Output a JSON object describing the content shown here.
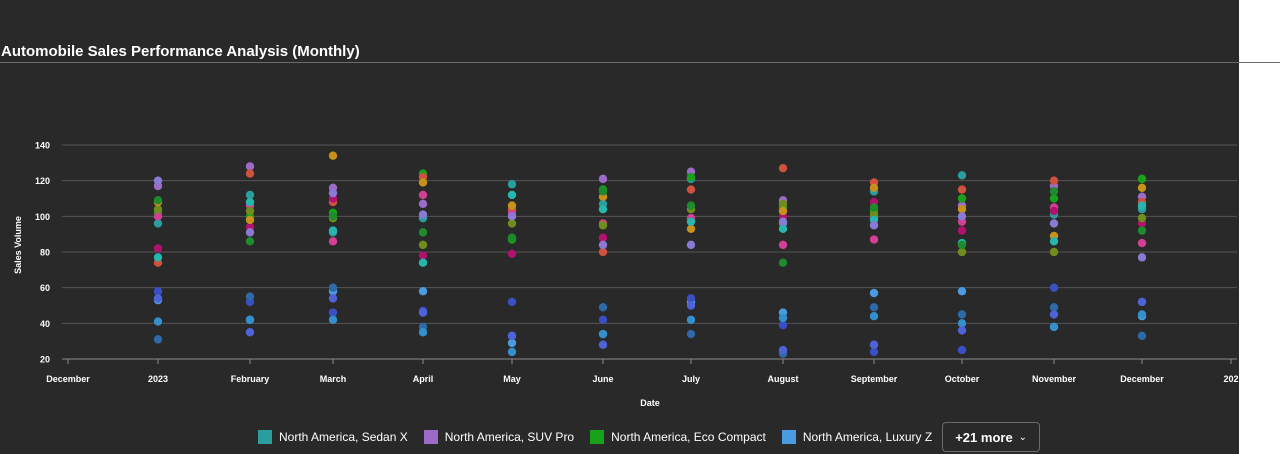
{
  "title": "Automobile Sales Performance Analysis (Monthly)",
  "chart_data": {
    "type": "scatter",
    "xlabel": "Date",
    "ylabel": "Sales Volume",
    "ylim": [
      20,
      140
    ],
    "yticks": [
      20,
      40,
      60,
      80,
      100,
      120,
      140
    ],
    "xticks": [
      "December",
      "2023",
      "February",
      "March",
      "April",
      "May",
      "June",
      "July",
      "August",
      "September",
      "October",
      "November",
      "December",
      "202"
    ],
    "grid": true,
    "legend_position": "bottom",
    "legend_more_label": "+21 more",
    "series": [
      {
        "name": "North America, Sedan X",
        "color": "#2a9d9f",
        "x": [
          "2023",
          "February",
          "March",
          "April",
          "May",
          "June",
          "July",
          "August",
          "September",
          "October",
          "November",
          "December"
        ],
        "y": [
          96,
          112,
          91,
          99,
          118,
          107,
          121,
          96,
          114,
          123,
          101,
          104
        ]
      },
      {
        "name": "North America, SUV Pro",
        "color": "#9b6bc7",
        "x": [
          "2023",
          "February",
          "March",
          "April",
          "May",
          "June",
          "July",
          "August",
          "September",
          "October",
          "November",
          "December"
        ],
        "y": [
          117,
          128,
          116,
          107,
          103,
          121,
          125,
          109,
          99,
          106,
          117,
          111
        ]
      },
      {
        "name": "North America, Eco Compact",
        "color": "#18a11a",
        "x": [
          "2023",
          "February",
          "March",
          "April",
          "May",
          "June",
          "July",
          "August",
          "September",
          "October",
          "November",
          "December"
        ],
        "y": [
          102,
          100,
          102,
          124,
          87,
          115,
          122,
          105,
          103,
          110,
          110,
          121
        ]
      },
      {
        "name": "North America, Luxury Z",
        "color": "#4a9be0",
        "x": [
          "2023",
          "February",
          "March",
          "April",
          "May",
          "June",
          "July",
          "August",
          "September",
          "October",
          "November",
          "December"
        ],
        "y": [
          53,
          42,
          58,
          58,
          29,
          34,
          52,
          46,
          57,
          58,
          38,
          44
        ]
      },
      {
        "name": "",
        "color": "#3a4fc4",
        "x": [
          "2023",
          "February",
          "March",
          "April",
          "May",
          "June",
          "July",
          "August",
          "September",
          "October",
          "November",
          "December"
        ],
        "y": [
          58,
          52,
          46,
          47,
          52,
          42,
          54,
          39,
          24,
          25,
          60,
          52
        ]
      },
      {
        "name": "",
        "color": "#2e6aa8",
        "x": [
          "2023",
          "February",
          "March",
          "April",
          "May",
          "June",
          "July",
          "August",
          "September",
          "October",
          "November",
          "December"
        ],
        "y": [
          31,
          55,
          60,
          38,
          33,
          49,
          34,
          23,
          49,
          45,
          49,
          33
        ]
      },
      {
        "name": "",
        "color": "#3390cc",
        "x": [
          "2023",
          "February",
          "March",
          "April",
          "May",
          "June",
          "July",
          "August",
          "September",
          "October",
          "November",
          "December"
        ],
        "y": [
          41,
          42,
          42,
          35,
          24,
          34,
          42,
          43,
          44,
          40,
          38,
          45
        ]
      },
      {
        "name": "",
        "color": "#4e63d8",
        "x": [
          "2023",
          "February",
          "March",
          "April",
          "May",
          "June",
          "July",
          "August",
          "September",
          "October",
          "November",
          "December"
        ],
        "y": [
          54,
          35,
          54,
          46,
          33,
          28,
          50,
          25,
          28,
          36,
          45,
          52
        ]
      },
      {
        "name": "",
        "color": "#d0513c",
        "x": [
          "2023",
          "February",
          "March",
          "April",
          "May",
          "June",
          "July",
          "August",
          "September",
          "October",
          "November",
          "December"
        ],
        "y": [
          74,
          124,
          108,
          122,
          104,
          80,
          115,
          127,
          119,
          115,
          120,
          108
        ]
      },
      {
        "name": "",
        "color": "#d23f95",
        "x": [
          "2023",
          "February",
          "March",
          "April",
          "May",
          "June",
          "July",
          "August",
          "September",
          "October",
          "November",
          "December"
        ],
        "y": [
          100,
          106,
          86,
          112,
          101,
          96,
          99,
          84,
          87,
          97,
          105,
          85
        ]
      },
      {
        "name": "",
        "color": "#b0126e",
        "x": [
          "2023",
          "February",
          "March",
          "April",
          "May",
          "June",
          "July",
          "August",
          "September",
          "October",
          "November",
          "December"
        ],
        "y": [
          82,
          94,
          110,
          78,
          79,
          88,
          97,
          100,
          108,
          92,
          103,
          96
        ]
      },
      {
        "name": "",
        "color": "#6f8d1c",
        "x": [
          "2023",
          "February",
          "March",
          "April",
          "May",
          "June",
          "July",
          "August",
          "September",
          "October",
          "November",
          "December"
        ],
        "y": [
          104,
          103,
          99,
          84,
          96,
          95,
          104,
          107,
          101,
          80,
          80,
          99
        ]
      },
      {
        "name": "",
        "color": "#c7911c",
        "x": [
          "2023",
          "February",
          "March",
          "April",
          "May",
          "June",
          "July",
          "August",
          "September",
          "October",
          "November",
          "December"
        ],
        "y": [
          108,
          98,
          134,
          119,
          106,
          111,
          93,
          103,
          116,
          104,
          89,
          116
        ]
      },
      {
        "name": "",
        "color": "#26b6ae",
        "x": [
          "2023",
          "February",
          "March",
          "April",
          "May",
          "June",
          "July",
          "August",
          "September",
          "October",
          "November",
          "December"
        ],
        "y": [
          77,
          108,
          92,
          74,
          112,
          104,
          97,
          93,
          98,
          85,
          86,
          106
        ]
      },
      {
        "name": "",
        "color": "#8a7ad6",
        "x": [
          "2023",
          "February",
          "March",
          "April",
          "May",
          "June",
          "July",
          "August",
          "September",
          "October",
          "November",
          "December"
        ],
        "y": [
          120,
          91,
          113,
          101,
          100,
          84,
          84,
          97,
          95,
          100,
          96,
          77
        ]
      },
      {
        "name": "",
        "color": "#1e8c2c",
        "x": [
          "2023",
          "February",
          "March",
          "April",
          "May",
          "June",
          "July",
          "August",
          "September",
          "October",
          "November",
          "December"
        ],
        "y": [
          109,
          86,
          100,
          91,
          88,
          114,
          106,
          74,
          105,
          84,
          114,
          92
        ]
      }
    ]
  }
}
